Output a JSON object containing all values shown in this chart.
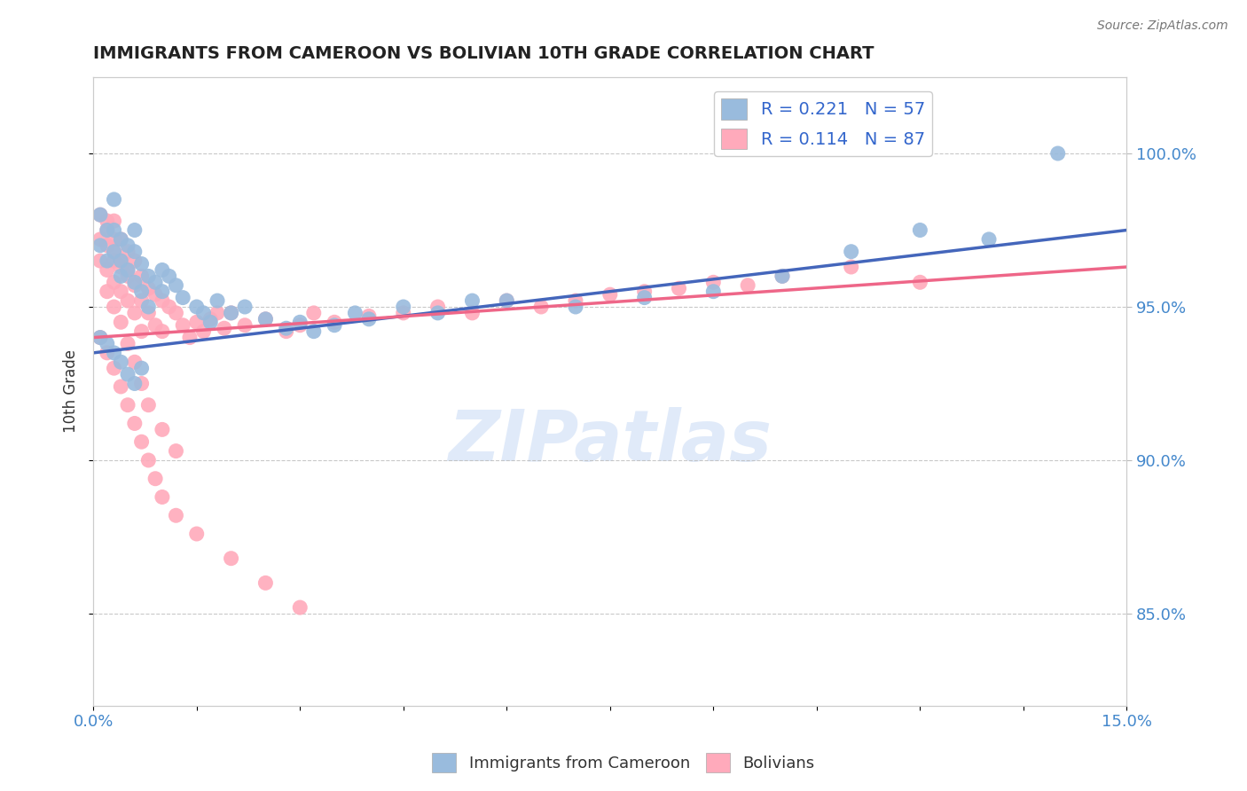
{
  "title": "IMMIGRANTS FROM CAMEROON VS BOLIVIAN 10TH GRADE CORRELATION CHART",
  "source": "Source: ZipAtlas.com",
  "ylabel": "10th Grade",
  "xlim": [
    0.0,
    0.15
  ],
  "ylim": [
    0.82,
    1.025
  ],
  "xticks": [
    0.0,
    0.015,
    0.03,
    0.045,
    0.06,
    0.075,
    0.09,
    0.105,
    0.12,
    0.135,
    0.15
  ],
  "xticklabels": [
    "0.0%",
    "",
    "",
    "",
    "",
    "",
    "",
    "",
    "",
    "",
    "15.0%"
  ],
  "yticks": [
    0.85,
    0.9,
    0.95,
    1.0
  ],
  "yticklabels": [
    "85.0%",
    "90.0%",
    "95.0%",
    "100.0%"
  ],
  "watermark": "ZIPatlas",
  "legend_blue_label": "R = 0.221   N = 57",
  "legend_pink_label": "R = 0.114   N = 87",
  "legend_bottom_blue": "Immigrants from Cameroon",
  "legend_bottom_pink": "Bolivians",
  "blue_color": "#99BBDD",
  "pink_color": "#FFAABB",
  "blue_line_color": "#4466BB",
  "pink_line_color": "#EE6688",
  "blue_scatter_x": [
    0.001,
    0.001,
    0.002,
    0.002,
    0.003,
    0.003,
    0.003,
    0.004,
    0.004,
    0.004,
    0.005,
    0.005,
    0.006,
    0.006,
    0.006,
    0.007,
    0.007,
    0.008,
    0.008,
    0.009,
    0.01,
    0.01,
    0.011,
    0.012,
    0.013,
    0.015,
    0.016,
    0.017,
    0.018,
    0.02,
    0.022,
    0.025,
    0.028,
    0.03,
    0.032,
    0.035,
    0.038,
    0.04,
    0.045,
    0.05,
    0.055,
    0.06,
    0.07,
    0.08,
    0.09,
    0.1,
    0.11,
    0.12,
    0.13,
    0.14,
    0.001,
    0.002,
    0.003,
    0.004,
    0.005,
    0.006,
    0.007
  ],
  "blue_scatter_y": [
    0.98,
    0.97,
    0.975,
    0.965,
    0.985,
    0.975,
    0.968,
    0.972,
    0.965,
    0.96,
    0.97,
    0.962,
    0.968,
    0.975,
    0.958,
    0.964,
    0.955,
    0.96,
    0.95,
    0.958,
    0.962,
    0.955,
    0.96,
    0.957,
    0.953,
    0.95,
    0.948,
    0.945,
    0.952,
    0.948,
    0.95,
    0.946,
    0.943,
    0.945,
    0.942,
    0.944,
    0.948,
    0.946,
    0.95,
    0.948,
    0.952,
    0.952,
    0.95,
    0.953,
    0.955,
    0.96,
    0.968,
    0.975,
    0.972,
    1.0,
    0.94,
    0.938,
    0.935,
    0.932,
    0.928,
    0.925,
    0.93
  ],
  "pink_scatter_x": [
    0.001,
    0.001,
    0.001,
    0.002,
    0.002,
    0.002,
    0.002,
    0.003,
    0.003,
    0.003,
    0.003,
    0.003,
    0.004,
    0.004,
    0.004,
    0.004,
    0.005,
    0.005,
    0.005,
    0.005,
    0.006,
    0.006,
    0.006,
    0.007,
    0.007,
    0.007,
    0.008,
    0.008,
    0.009,
    0.009,
    0.01,
    0.01,
    0.011,
    0.012,
    0.013,
    0.014,
    0.015,
    0.016,
    0.017,
    0.018,
    0.019,
    0.02,
    0.022,
    0.025,
    0.028,
    0.03,
    0.032,
    0.035,
    0.04,
    0.045,
    0.05,
    0.055,
    0.06,
    0.065,
    0.07,
    0.075,
    0.08,
    0.085,
    0.09,
    0.095,
    0.1,
    0.11,
    0.12,
    0.001,
    0.002,
    0.003,
    0.004,
    0.005,
    0.006,
    0.007,
    0.008,
    0.009,
    0.01,
    0.012,
    0.015,
    0.02,
    0.025,
    0.03,
    0.002,
    0.003,
    0.004,
    0.005,
    0.006,
    0.007,
    0.008,
    0.01,
    0.012
  ],
  "pink_scatter_y": [
    0.98,
    0.972,
    0.965,
    0.978,
    0.97,
    0.962,
    0.975,
    0.972,
    0.965,
    0.978,
    0.958,
    0.968,
    0.972,
    0.963,
    0.955,
    0.965,
    0.968,
    0.96,
    0.952,
    0.962,
    0.965,
    0.957,
    0.948,
    0.96,
    0.952,
    0.942,
    0.956,
    0.948,
    0.954,
    0.944,
    0.952,
    0.942,
    0.95,
    0.948,
    0.944,
    0.94,
    0.945,
    0.942,
    0.946,
    0.948,
    0.943,
    0.948,
    0.944,
    0.946,
    0.942,
    0.944,
    0.948,
    0.945,
    0.947,
    0.948,
    0.95,
    0.948,
    0.952,
    0.95,
    0.952,
    0.954,
    0.955,
    0.956,
    0.958,
    0.957,
    0.96,
    0.963,
    0.958,
    0.94,
    0.935,
    0.93,
    0.924,
    0.918,
    0.912,
    0.906,
    0.9,
    0.894,
    0.888,
    0.882,
    0.876,
    0.868,
    0.86,
    0.852,
    0.955,
    0.95,
    0.945,
    0.938,
    0.932,
    0.925,
    0.918,
    0.91,
    0.903
  ]
}
